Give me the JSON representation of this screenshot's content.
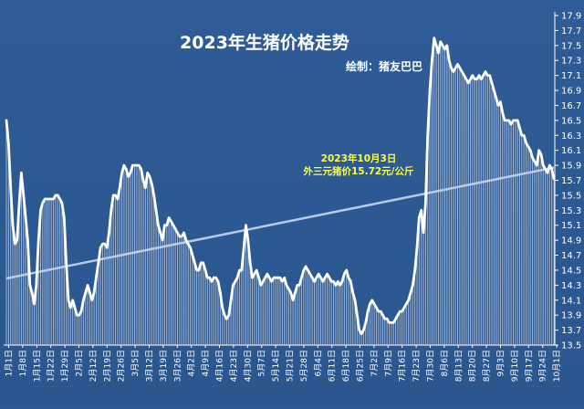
{
  "chart_data": {
    "type": "line",
    "title": "2023年生猪价格走势",
    "author": "绘制：猪友巴巴",
    "annotation": {
      "line1": "2023年10月3日",
      "line2": "外三元猪价15.72元/公斤"
    },
    "ylim": [
      13.5,
      17.9
    ],
    "yticks": [
      13.5,
      13.7,
      13.9,
      14.1,
      14.3,
      14.5,
      14.7,
      14.9,
      15.1,
      15.3,
      15.5,
      15.7,
      15.9,
      16.1,
      16.3,
      16.5,
      16.7,
      16.9,
      17.1,
      17.3,
      17.5,
      17.7,
      17.9
    ],
    "xtick_labels": [
      "1月1日",
      "1月8日",
      "1月15日",
      "1月22日",
      "1月29日",
      "2月5日",
      "2月12日",
      "2月19日",
      "2月26日",
      "3月5日",
      "3月12日",
      "3月19日",
      "3月26日",
      "4月2日",
      "4月9日",
      "4月16日",
      "4月23日",
      "4月30日",
      "5月7日",
      "5月14日",
      "5月21日",
      "5月28日",
      "6月4日",
      "6月11日",
      "6月18日",
      "6月25日",
      "7月2日",
      "7月9日",
      "7月16日",
      "7月23日",
      "7月30日",
      "8月6日",
      "8月13日",
      "8月20日",
      "8月27日",
      "9月3日",
      "9月10日",
      "9月17日",
      "9月24日",
      "10月1日"
    ],
    "x_start": "1月1日",
    "x_end": "10月3日",
    "series": [
      {
        "values": [
          16.5,
          16.2,
          15.6,
          15.1,
          14.85,
          14.9,
          15.4,
          15.8,
          15.5,
          15.2,
          14.9,
          14.3,
          14.2,
          14.05,
          14.3,
          14.9,
          15.3,
          15.4,
          15.45,
          15.45,
          15.45,
          15.45,
          15.45,
          15.5,
          15.5,
          15.45,
          15.4,
          15.2,
          14.6,
          14.1,
          14.0,
          14.1,
          14.0,
          13.9,
          13.9,
          13.95,
          14.1,
          14.2,
          14.3,
          14.2,
          14.1,
          14.2,
          14.4,
          14.6,
          14.8,
          14.85,
          14.85,
          14.8,
          15.0,
          15.3,
          15.5,
          15.5,
          15.45,
          15.6,
          15.8,
          15.9,
          15.85,
          15.75,
          15.8,
          15.9,
          15.9,
          15.9,
          15.9,
          15.85,
          15.7,
          15.6,
          15.8,
          15.75,
          15.65,
          15.5,
          15.3,
          15.1,
          15.0,
          14.9,
          15.1,
          15.1,
          15.2,
          15.15,
          15.1,
          15.05,
          15.0,
          14.95,
          14.95,
          15.0,
          14.9,
          14.85,
          14.8,
          14.7,
          14.6,
          14.5,
          14.5,
          14.6,
          14.6,
          14.5,
          14.4,
          14.4,
          14.35,
          14.4,
          14.4,
          14.35,
          14.2,
          14.0,
          13.9,
          13.85,
          13.9,
          14.1,
          14.3,
          14.35,
          14.4,
          14.5,
          14.5,
          14.8,
          15.1,
          14.9,
          14.6,
          14.4,
          14.45,
          14.5,
          14.4,
          14.3,
          14.35,
          14.4,
          14.45,
          14.4,
          14.35,
          14.4,
          14.4,
          14.4,
          14.4,
          14.35,
          14.4,
          14.3,
          14.25,
          14.2,
          14.1,
          14.2,
          14.3,
          14.3,
          14.4,
          14.5,
          14.55,
          14.5,
          14.45,
          14.4,
          14.35,
          14.4,
          14.45,
          14.4,
          14.35,
          14.4,
          14.45,
          14.4,
          14.35,
          14.35,
          14.3,
          14.35,
          14.3,
          14.35,
          14.45,
          14.5,
          14.4,
          14.35,
          14.2,
          14.1,
          13.9,
          13.7,
          13.65,
          13.7,
          13.8,
          13.95,
          14.05,
          14.1,
          14.05,
          14.0,
          13.95,
          13.95,
          13.9,
          13.85,
          13.85,
          13.8,
          13.8,
          13.8,
          13.85,
          13.9,
          13.95,
          13.95,
          14.0,
          14.05,
          14.1,
          14.2,
          14.3,
          14.5,
          14.8,
          15.2,
          15.3,
          15.0,
          15.4,
          16.3,
          16.9,
          17.3,
          17.6,
          17.5,
          17.4,
          17.55,
          17.5,
          17.45,
          17.5,
          17.3,
          17.2,
          17.15,
          17.2,
          17.25,
          17.2,
          17.15,
          17.1,
          17.05,
          17.0,
          17.05,
          17.1,
          17.05,
          17.05,
          17.1,
          17.05,
          17.1,
          17.15,
          17.1,
          17.1,
          17.0,
          16.9,
          16.8,
          16.7,
          16.75,
          16.6,
          16.5,
          16.5,
          16.5,
          16.45,
          16.5,
          16.5,
          16.5,
          16.4,
          16.3,
          16.3,
          16.2,
          16.15,
          16.1,
          16.0,
          15.95,
          15.9,
          16.1,
          16.05,
          15.9,
          15.85,
          15.8,
          15.9,
          15.85,
          15.72
        ]
      }
    ],
    "trendline": {
      "start": 14.39,
      "end": 15.87
    },
    "grid": false,
    "legend": "none"
  }
}
